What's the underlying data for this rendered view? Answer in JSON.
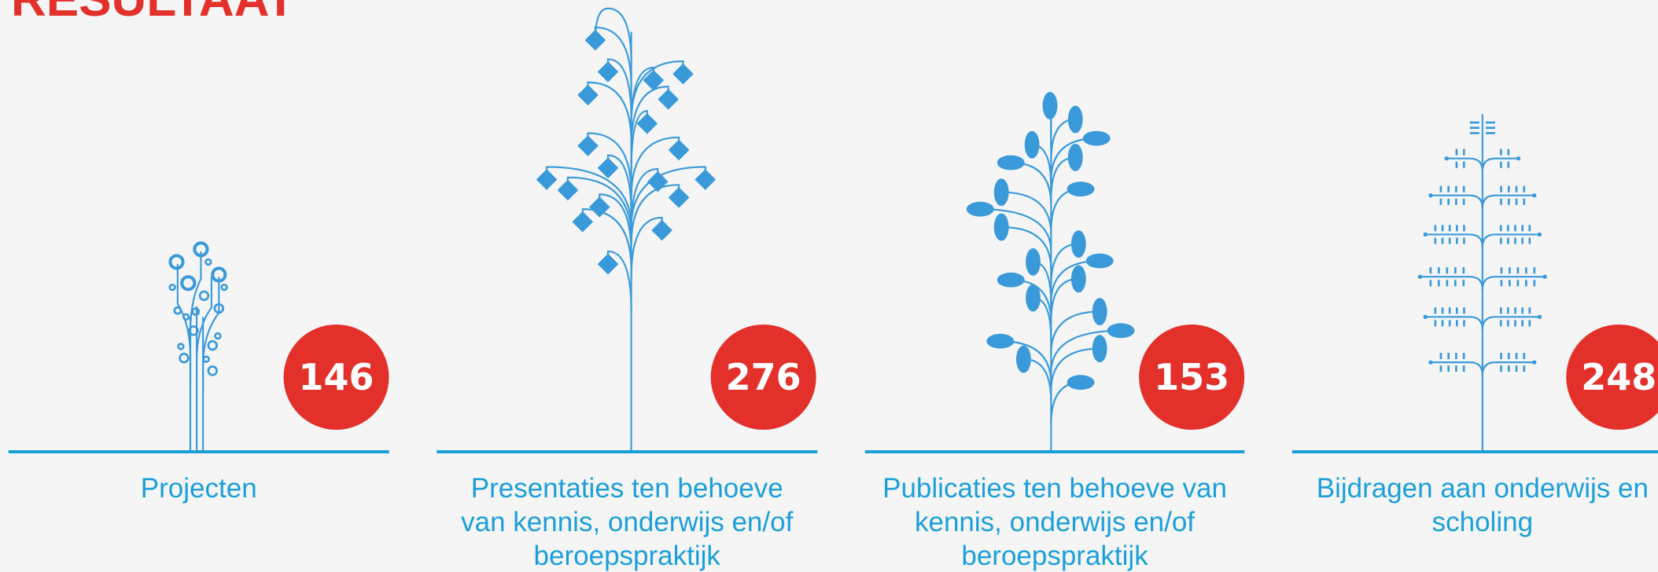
{
  "title": "RESULTAAT",
  "items": [
    {
      "value": 146,
      "label": [
        "Projecten"
      ]
    },
    {
      "value": 276,
      "label": [
        "Presentaties ten behoeve",
        "van kennis, onderwijs en/of",
        "beroepspraktijk"
      ]
    },
    {
      "value": 153,
      "label": [
        "Publicaties ten behoeve van",
        "kennis, onderwijs en/of",
        "beroepspraktijk"
      ]
    },
    {
      "value": 248,
      "label": [
        "Bijdragen aan onderwijs en",
        "scholing"
      ]
    }
  ]
}
